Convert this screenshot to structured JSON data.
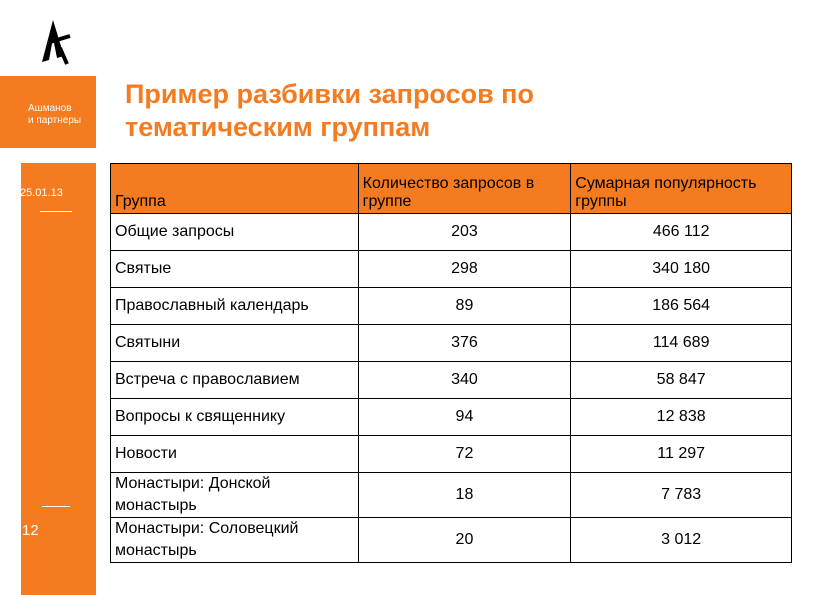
{
  "brand": {
    "name": "Ашманов\nи партнеры"
  },
  "slide": {
    "date": "25.01.13",
    "page_number": "12",
    "title": "Пример разбивки запросов по тематическим группам"
  },
  "table": {
    "headers": [
      "Группа",
      "Количество запросов в группе",
      "Сумарная популярность группы"
    ],
    "rows": [
      {
        "group": "Общие запросы",
        "count": "203",
        "popularity": "466 112"
      },
      {
        "group": "Святые",
        "count": "298",
        "popularity": "340 180"
      },
      {
        "group": "Православный календарь",
        "count": "89",
        "popularity": "186 564"
      },
      {
        "group": "Святыни",
        "count": "376",
        "popularity": "114 689"
      },
      {
        "group": "Встреча с православием",
        "count": "340",
        "popularity": "58 847"
      },
      {
        "group": "Вопросы к священнику",
        "count": "94",
        "popularity": "12 838"
      },
      {
        "group": "Новости",
        "count": "72",
        "popularity": "11 297"
      },
      {
        "group": "Монастыри: Донской\nмонастырь",
        "count": "18",
        "popularity": "7 783"
      },
      {
        "group": "Монастыри: Соловецкий\nмонастырь",
        "count": "20",
        "popularity": "3 012"
      }
    ]
  },
  "colors": {
    "accent": "#f47b20"
  }
}
